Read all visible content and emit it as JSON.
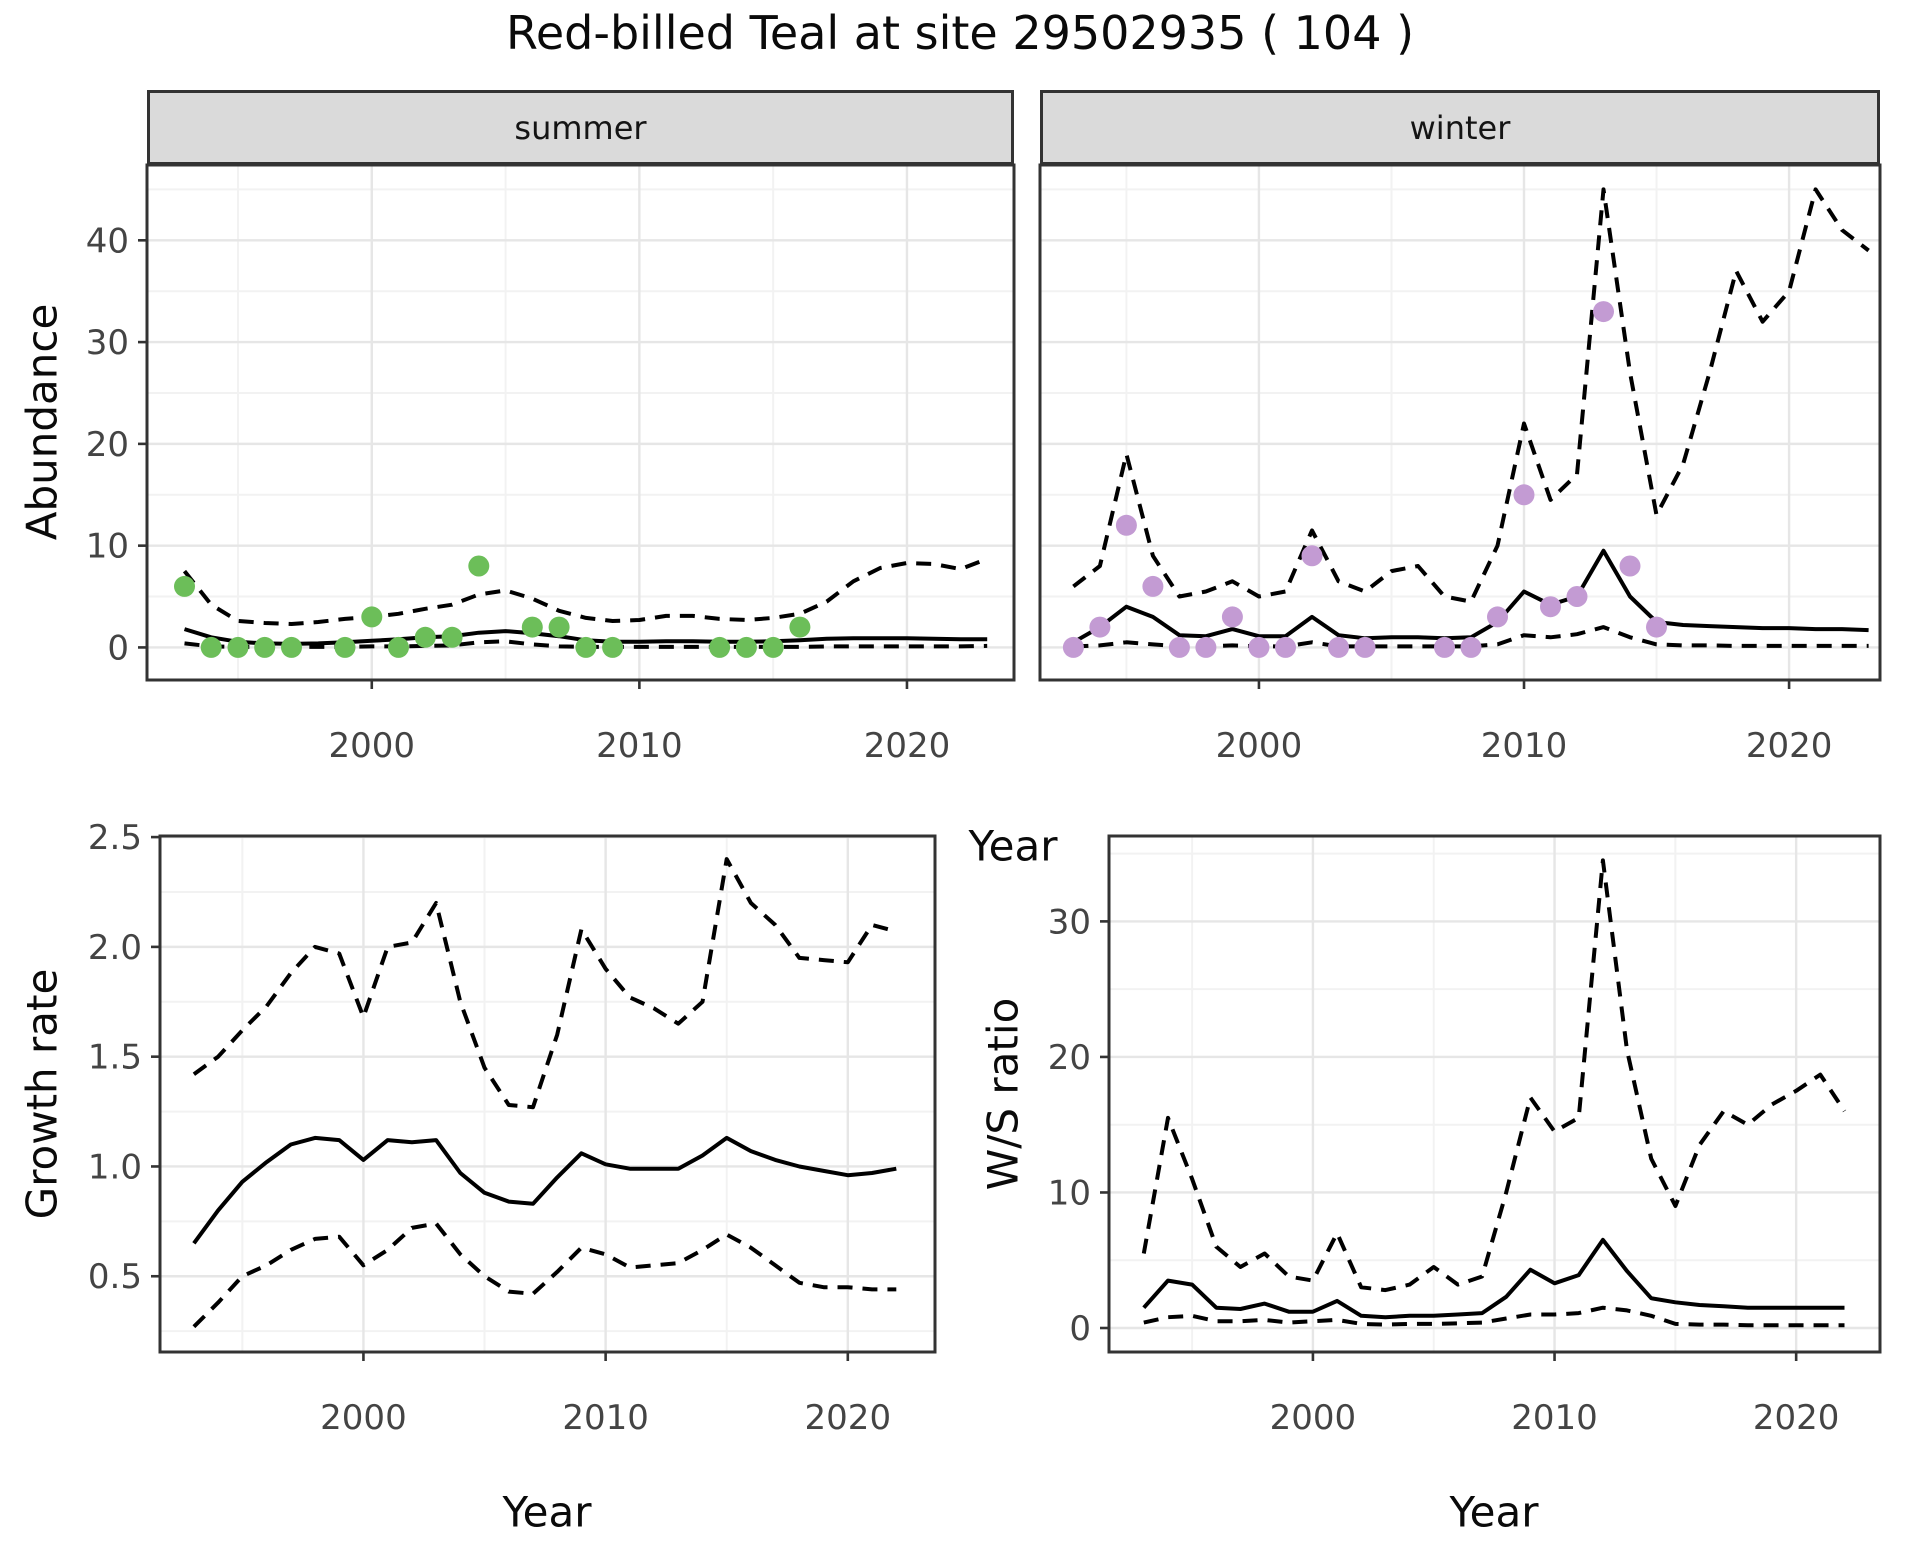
{
  "figure": {
    "title": "Red-billed Teal at site 29502935 ( 104 )"
  },
  "colors": {
    "observed_summer": "#6CBE59",
    "observed_winter": "#C39BD3",
    "line": "#000000",
    "tick_text": "#444444",
    "axis_text": "#0a0a0a",
    "strip_bg": "#DADADA",
    "grid_major": "#E6E6E6",
    "grid_minor": "#F2F2F2",
    "panel_border": "#333333",
    "panel_bg": "#FFFFFF"
  },
  "chart_data": [
    {
      "id": "abundance_summer",
      "type": "line",
      "facet_label": "summer",
      "xlabel": "Year",
      "ylabel": "Abundance",
      "xlim": [
        1991.6,
        2024.0
      ],
      "ylim": [
        -3.2,
        47.4
      ],
      "xticks": [
        2000,
        2010,
        2020
      ],
      "xtick_labels": [
        "2000",
        "2010",
        "2020"
      ],
      "yticks": [
        0,
        10,
        20,
        30,
        40
      ],
      "ytick_labels": [
        "0",
        "10",
        "20",
        "30",
        "40"
      ],
      "xminor": [
        1995,
        2005,
        2015
      ],
      "yminor": [
        5,
        15,
        25,
        35,
        45
      ],
      "x": [
        1993,
        1994,
        1995,
        1996,
        1997,
        1998,
        1999,
        2000,
        2001,
        2002,
        2003,
        2004,
        2005,
        2006,
        2007,
        2008,
        2009,
        2010,
        2011,
        2012,
        2013,
        2014,
        2015,
        2016,
        2017,
        2018,
        2019,
        2020,
        2021,
        2022,
        2023
      ],
      "series": [
        {
          "name": "model_fit",
          "style": "solid",
          "values": [
            1.8,
            1.0,
            0.55,
            0.4,
            0.35,
            0.4,
            0.5,
            0.65,
            0.8,
            1.0,
            1.1,
            1.45,
            1.6,
            1.4,
            1.1,
            0.7,
            0.55,
            0.55,
            0.6,
            0.6,
            0.55,
            0.55,
            0.6,
            0.7,
            0.85,
            0.9,
            0.9,
            0.9,
            0.85,
            0.8,
            0.8
          ]
        },
        {
          "name": "upper_95ci",
          "style": "dashed",
          "values": [
            7.5,
            4.2,
            2.6,
            2.4,
            2.3,
            2.5,
            2.8,
            3.0,
            3.3,
            3.8,
            4.2,
            5.2,
            5.6,
            4.8,
            3.6,
            2.9,
            2.6,
            2.7,
            3.1,
            3.1,
            2.8,
            2.7,
            2.9,
            3.3,
            4.5,
            6.5,
            7.8,
            8.3,
            8.2,
            7.7,
            8.7
          ]
        },
        {
          "name": "lower_95ci",
          "style": "dashed",
          "values": [
            0.4,
            0.1,
            0.05,
            0.05,
            0.05,
            0.05,
            0.05,
            0.1,
            0.1,
            0.15,
            0.2,
            0.5,
            0.6,
            0.3,
            0.1,
            0.05,
            0.05,
            0.05,
            0.05,
            0.05,
            0.05,
            0.05,
            0.05,
            0.05,
            0.1,
            0.1,
            0.1,
            0.1,
            0.1,
            0.1,
            0.15
          ]
        }
      ],
      "points": {
        "name": "observed_counts",
        "color_key": "observed_summer",
        "data": [
          [
            1993,
            6
          ],
          [
            1994,
            0
          ],
          [
            1995,
            0
          ],
          [
            1996,
            0
          ],
          [
            1997,
            0
          ],
          [
            1999,
            0
          ],
          [
            2000,
            3
          ],
          [
            2001,
            0
          ],
          [
            2002,
            1
          ],
          [
            2003,
            1
          ],
          [
            2004,
            8
          ],
          [
            2006,
            2
          ],
          [
            2007,
            2
          ],
          [
            2008,
            0
          ],
          [
            2009,
            0
          ],
          [
            2013,
            0
          ],
          [
            2014,
            0
          ],
          [
            2015,
            0
          ],
          [
            2016,
            2
          ]
        ]
      }
    },
    {
      "id": "abundance_winter",
      "type": "line",
      "facet_label": "winter",
      "xlabel": "Year",
      "ylabel": "Abundance",
      "xlim": [
        1991.74,
        2023.43
      ],
      "ylim": [
        -3.2,
        47.4
      ],
      "xticks": [
        2000,
        2010,
        2020
      ],
      "xtick_labels": [
        "2000",
        "2010",
        "2020"
      ],
      "yticks": [
        0,
        10,
        20,
        30,
        40
      ],
      "ytick_labels": [
        "0",
        "10",
        "20",
        "30",
        "40"
      ],
      "xminor": [
        1995,
        2005,
        2015
      ],
      "yminor": [
        5,
        15,
        25,
        35,
        45
      ],
      "x": [
        1993,
        1994,
        1995,
        1996,
        1997,
        1998,
        1999,
        2000,
        2001,
        2002,
        2003,
        2004,
        2005,
        2006,
        2007,
        2008,
        2009,
        2010,
        2011,
        2012,
        2013,
        2014,
        2015,
        2016,
        2017,
        2018,
        2019,
        2020,
        2021,
        2022,
        2023
      ],
      "series": [
        {
          "name": "model_fit",
          "style": "solid",
          "values": [
            0.5,
            2.0,
            4.0,
            3.0,
            1.2,
            1.1,
            1.8,
            1.1,
            1.1,
            3.0,
            1.2,
            0.9,
            1.0,
            1.0,
            0.9,
            1.0,
            2.5,
            5.5,
            4.2,
            5.0,
            9.5,
            5.0,
            2.5,
            2.2,
            2.1,
            2.0,
            1.9,
            1.9,
            1.8,
            1.8,
            1.7
          ]
        },
        {
          "name": "upper_95ci",
          "style": "dashed",
          "values": [
            6,
            8,
            19,
            9,
            5,
            5.5,
            6.5,
            5,
            5.5,
            11.5,
            6.5,
            5.5,
            7.5,
            8,
            5,
            4.5,
            10,
            22,
            14.5,
            17,
            45,
            27,
            13,
            18,
            27,
            37,
            32,
            35,
            45,
            41,
            39
          ]
        },
        {
          "name": "lower_95ci",
          "style": "dashed",
          "values": [
            0.1,
            0.2,
            0.5,
            0.3,
            0.1,
            0.1,
            0.2,
            0.1,
            0.1,
            0.5,
            0.1,
            0.1,
            0.1,
            0.1,
            0.1,
            0.1,
            0.3,
            1.2,
            1.0,
            1.3,
            2.0,
            1.0,
            0.3,
            0.2,
            0.2,
            0.15,
            0.15,
            0.15,
            0.15,
            0.15,
            0.15
          ]
        }
      ],
      "points": {
        "name": "observed_counts",
        "color_key": "observed_winter",
        "data": [
          [
            1993,
            0
          ],
          [
            1994,
            2
          ],
          [
            1995,
            12
          ],
          [
            1996,
            6
          ],
          [
            1997,
            0
          ],
          [
            1998,
            0
          ],
          [
            1999,
            3
          ],
          [
            2000,
            0
          ],
          [
            2001,
            0
          ],
          [
            2002,
            9
          ],
          [
            2003,
            0
          ],
          [
            2004,
            0
          ],
          [
            2007,
            0
          ],
          [
            2008,
            0
          ],
          [
            2009,
            3
          ],
          [
            2010,
            15
          ],
          [
            2011,
            4
          ],
          [
            2012,
            5
          ],
          [
            2013,
            33
          ],
          [
            2014,
            8
          ],
          [
            2015,
            2
          ]
        ]
      }
    },
    {
      "id": "growth_rate",
      "type": "line",
      "facet_label": "",
      "xlabel": "Year",
      "ylabel": "Growth rate",
      "xlim": [
        1991.6,
        2023.6
      ],
      "ylim": [
        0.155,
        2.505
      ],
      "xticks": [
        2000,
        2010,
        2020
      ],
      "xtick_labels": [
        "2000",
        "2010",
        "2020"
      ],
      "yticks": [
        0.5,
        1.0,
        1.5,
        2.0,
        2.5
      ],
      "ytick_labels": [
        "0.5",
        "1.0",
        "1.5",
        "2.0",
        "2.5"
      ],
      "xminor": [
        1995,
        2005,
        2015
      ],
      "yminor": [
        0.25,
        0.75,
        1.25,
        1.75,
        2.25
      ],
      "x": [
        1993,
        1994,
        1995,
        1996,
        1997,
        1998,
        1999,
        2000,
        2001,
        2002,
        2003,
        2004,
        2005,
        2006,
        2007,
        2008,
        2009,
        2010,
        2011,
        2012,
        2013,
        2014,
        2015,
        2016,
        2017,
        2018,
        2019,
        2020,
        2021,
        2022
      ],
      "series": [
        {
          "name": "model_fit",
          "style": "solid",
          "values": [
            0.65,
            0.8,
            0.93,
            1.02,
            1.1,
            1.13,
            1.12,
            1.03,
            1.12,
            1.11,
            1.12,
            0.97,
            0.88,
            0.84,
            0.83,
            0.95,
            1.06,
            1.01,
            0.99,
            0.99,
            0.99,
            1.05,
            1.13,
            1.07,
            1.03,
            1.0,
            0.98,
            0.96,
            0.97,
            0.99
          ]
        },
        {
          "name": "upper_95ci",
          "style": "dashed",
          "values": [
            1.42,
            1.5,
            1.62,
            1.73,
            1.88,
            2.0,
            1.97,
            1.68,
            2.0,
            2.02,
            2.2,
            1.75,
            1.45,
            1.28,
            1.27,
            1.6,
            2.08,
            1.9,
            1.77,
            1.72,
            1.65,
            1.75,
            2.4,
            2.2,
            2.1,
            1.95,
            1.94,
            1.93,
            2.1,
            2.07
          ]
        },
        {
          "name": "lower_95ci",
          "style": "dashed",
          "values": [
            0.27,
            0.38,
            0.5,
            0.55,
            0.62,
            0.67,
            0.68,
            0.55,
            0.62,
            0.72,
            0.74,
            0.6,
            0.5,
            0.43,
            0.42,
            0.52,
            0.63,
            0.6,
            0.54,
            0.55,
            0.56,
            0.62,
            0.69,
            0.63,
            0.55,
            0.47,
            0.45,
            0.45,
            0.44,
            0.44
          ]
        }
      ],
      "points": null
    },
    {
      "id": "ws_ratio",
      "type": "line",
      "facet_label": "",
      "xlabel": "Year",
      "ylabel": "W/S ratio",
      "xlim": [
        1991.56,
        2023.47
      ],
      "ylim": [
        -1.77,
        36.3
      ],
      "xticks": [
        2000,
        2010,
        2020
      ],
      "xtick_labels": [
        "2000",
        "2010",
        "2020"
      ],
      "yticks": [
        0,
        10,
        20,
        30
      ],
      "ytick_labels": [
        "0",
        "10",
        "20",
        "30"
      ],
      "xminor": [
        1995,
        2005,
        2015
      ],
      "yminor": [
        5,
        15,
        25,
        35
      ],
      "x": [
        1993,
        1994,
        1995,
        1996,
        1997,
        1998,
        1999,
        2000,
        2001,
        2002,
        2003,
        2004,
        2005,
        2006,
        2007,
        2008,
        2009,
        2010,
        2011,
        2012,
        2013,
        2014,
        2015,
        2016,
        2017,
        2018,
        2019,
        2020,
        2021,
        2022
      ],
      "series": [
        {
          "name": "model_fit",
          "style": "solid",
          "values": [
            1.5,
            3.5,
            3.2,
            1.5,
            1.4,
            1.8,
            1.2,
            1.2,
            2.0,
            0.9,
            0.8,
            0.9,
            0.9,
            1.0,
            1.1,
            2.3,
            4.3,
            3.3,
            3.9,
            6.5,
            4.2,
            2.2,
            1.9,
            1.7,
            1.6,
            1.5,
            1.5,
            1.5,
            1.5,
            1.5
          ]
        },
        {
          "name": "upper_95ci",
          "style": "dashed",
          "values": [
            5.5,
            15.5,
            11,
            6,
            4.5,
            5.5,
            3.8,
            3.5,
            7,
            3.0,
            2.8,
            3.2,
            4.5,
            3.2,
            3.8,
            10,
            17,
            14.5,
            15.5,
            34.5,
            20.5,
            12.5,
            9,
            13.5,
            16,
            15,
            16.5,
            17.5,
            18.7,
            16
          ]
        },
        {
          "name": "lower_95ci",
          "style": "dashed",
          "values": [
            0.4,
            0.8,
            0.9,
            0.5,
            0.5,
            0.6,
            0.4,
            0.5,
            0.6,
            0.3,
            0.25,
            0.3,
            0.3,
            0.35,
            0.4,
            0.7,
            1.0,
            1.0,
            1.1,
            1.5,
            1.3,
            0.9,
            0.3,
            0.25,
            0.25,
            0.2,
            0.2,
            0.2,
            0.2,
            0.2
          ]
        }
      ],
      "points": null
    }
  ]
}
